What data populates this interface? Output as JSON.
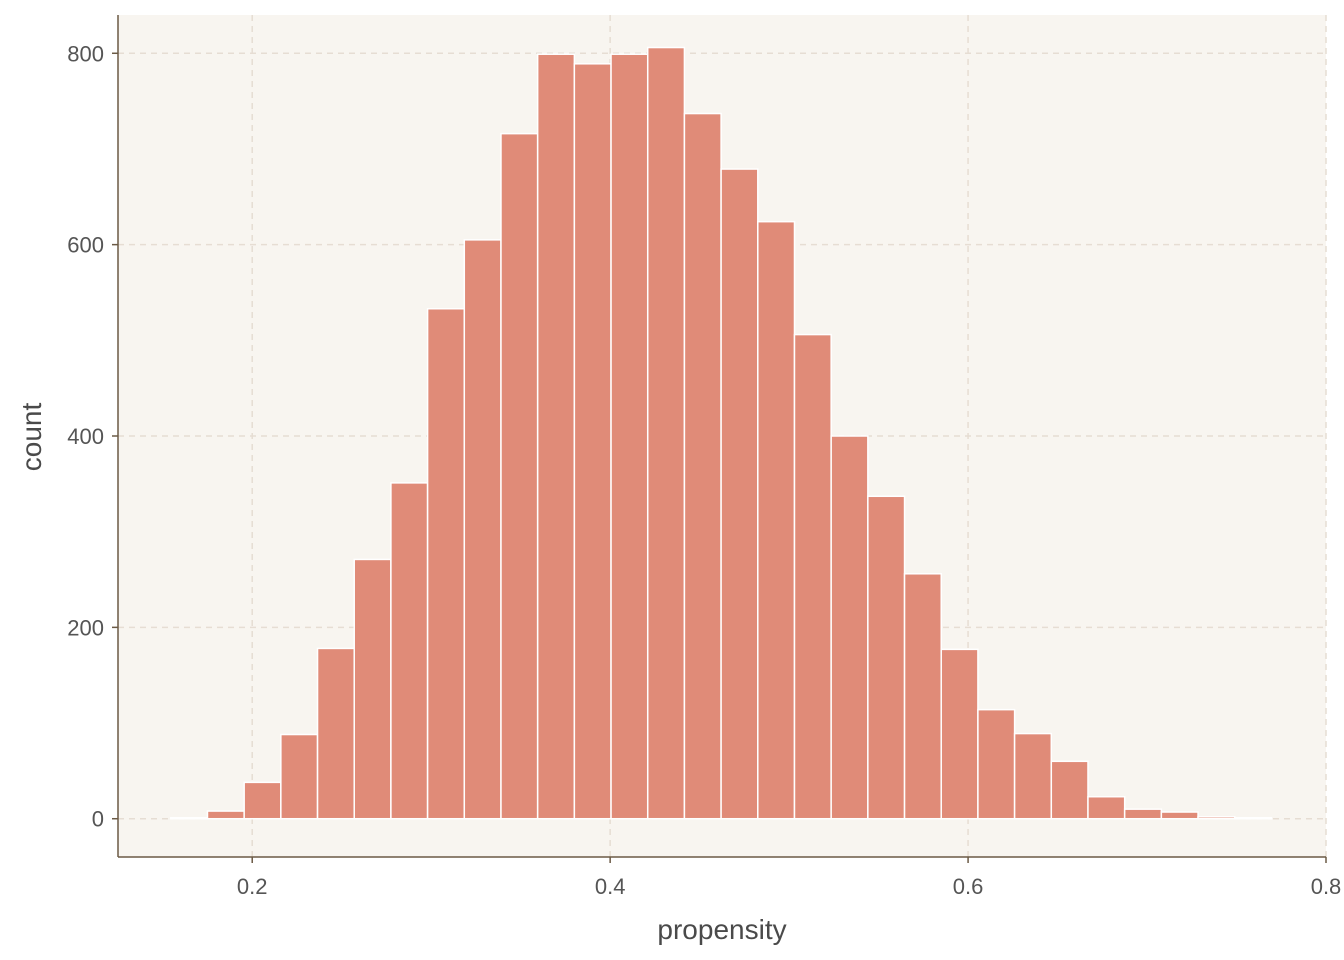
{
  "chart_data": {
    "type": "bar",
    "subtype": "histogram",
    "title": "",
    "xlabel": "propensity",
    "ylabel": "count",
    "xlim": [
      0.125,
      0.8
    ],
    "ylim": [
      -40,
      840
    ],
    "x_ticks": [
      0.2,
      0.4,
      0.6,
      0.8
    ],
    "x_tick_labels": [
      "0.2",
      "0.4",
      "0.6",
      "0.8"
    ],
    "y_ticks": [
      0,
      200,
      400,
      600,
      800
    ],
    "y_tick_labels": [
      "0",
      "200",
      "400",
      "600",
      "800"
    ],
    "grid": true,
    "legend": "none",
    "bin_width": 0.0205,
    "bins": [
      {
        "x0": 0.1545,
        "x1": 0.175,
        "count": 1
      },
      {
        "x0": 0.175,
        "x1": 0.1955,
        "count": 8
      },
      {
        "x0": 0.1955,
        "x1": 0.216,
        "count": 38
      },
      {
        "x0": 0.216,
        "x1": 0.2365,
        "count": 88
      },
      {
        "x0": 0.2365,
        "x1": 0.257,
        "count": 178
      },
      {
        "x0": 0.257,
        "x1": 0.2775,
        "count": 271
      },
      {
        "x0": 0.2775,
        "x1": 0.298,
        "count": 351
      },
      {
        "x0": 0.298,
        "x1": 0.3185,
        "count": 533
      },
      {
        "x0": 0.3185,
        "x1": 0.339,
        "count": 605
      },
      {
        "x0": 0.339,
        "x1": 0.3595,
        "count": 716
      },
      {
        "x0": 0.3595,
        "x1": 0.38,
        "count": 799
      },
      {
        "x0": 0.38,
        "x1": 0.4005,
        "count": 789
      },
      {
        "x0": 0.4005,
        "x1": 0.421,
        "count": 799
      },
      {
        "x0": 0.421,
        "x1": 0.4415,
        "count": 806
      },
      {
        "x0": 0.4415,
        "x1": 0.462,
        "count": 737
      },
      {
        "x0": 0.462,
        "x1": 0.4825,
        "count": 679
      },
      {
        "x0": 0.4825,
        "x1": 0.503,
        "count": 624
      },
      {
        "x0": 0.503,
        "x1": 0.5235,
        "count": 506
      },
      {
        "x0": 0.5235,
        "x1": 0.544,
        "count": 400
      },
      {
        "x0": 0.544,
        "x1": 0.5645,
        "count": 337
      },
      {
        "x0": 0.5645,
        "x1": 0.585,
        "count": 256
      },
      {
        "x0": 0.585,
        "x1": 0.6055,
        "count": 177
      },
      {
        "x0": 0.6055,
        "x1": 0.626,
        "count": 114
      },
      {
        "x0": 0.626,
        "x1": 0.6465,
        "count": 89
      },
      {
        "x0": 0.6465,
        "x1": 0.667,
        "count": 60
      },
      {
        "x0": 0.667,
        "x1": 0.6875,
        "count": 23
      },
      {
        "x0": 0.6875,
        "x1": 0.708,
        "count": 10
      },
      {
        "x0": 0.708,
        "x1": 0.7285,
        "count": 7
      },
      {
        "x0": 0.7285,
        "x1": 0.749,
        "count": 2
      },
      {
        "x0": 0.749,
        "x1": 0.7695,
        "count": 1
      }
    ],
    "colors": {
      "bar_fill": "#e08b78",
      "bar_stroke": "#ffffff",
      "panel_background": "#f8f5f0",
      "grid": "#e6ddd3",
      "axis_line": "#6b5a45"
    }
  }
}
